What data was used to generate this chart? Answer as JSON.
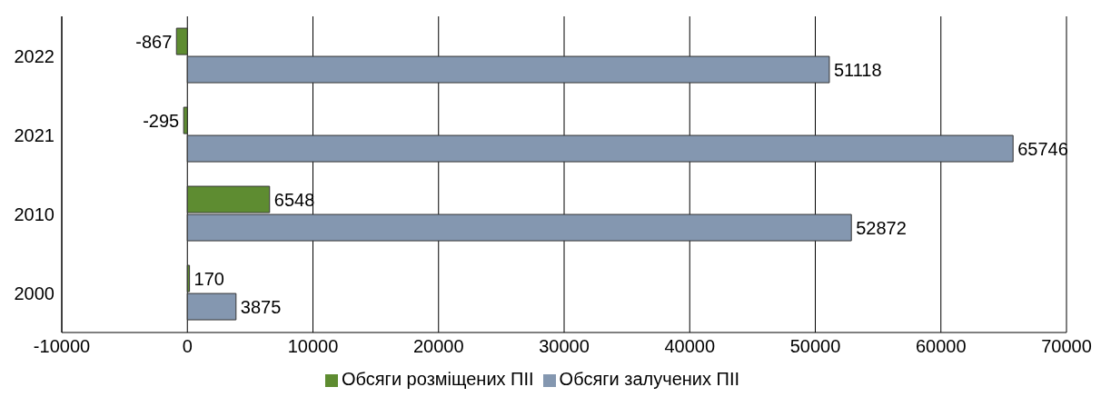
{
  "chart_data": {
    "type": "bar",
    "orientation": "horizontal",
    "categories": [
      "2022",
      "2021",
      "2010",
      "2000"
    ],
    "series": [
      {
        "name": "Обсяги розміщених ПІІ",
        "color": "#5e8c31",
        "values": [
          -867,
          -295,
          6548,
          170
        ]
      },
      {
        "name": "Обсяги залучених ПІІ",
        "color": "#8497b0",
        "values": [
          51118,
          65746,
          52872,
          3875
        ]
      }
    ],
    "xlim": [
      -10000,
      70000
    ],
    "xticks": [
      -10000,
      0,
      10000,
      20000,
      30000,
      40000,
      50000,
      60000,
      70000
    ],
    "grid": "x",
    "legend": "bottom",
    "data_labels": true
  }
}
